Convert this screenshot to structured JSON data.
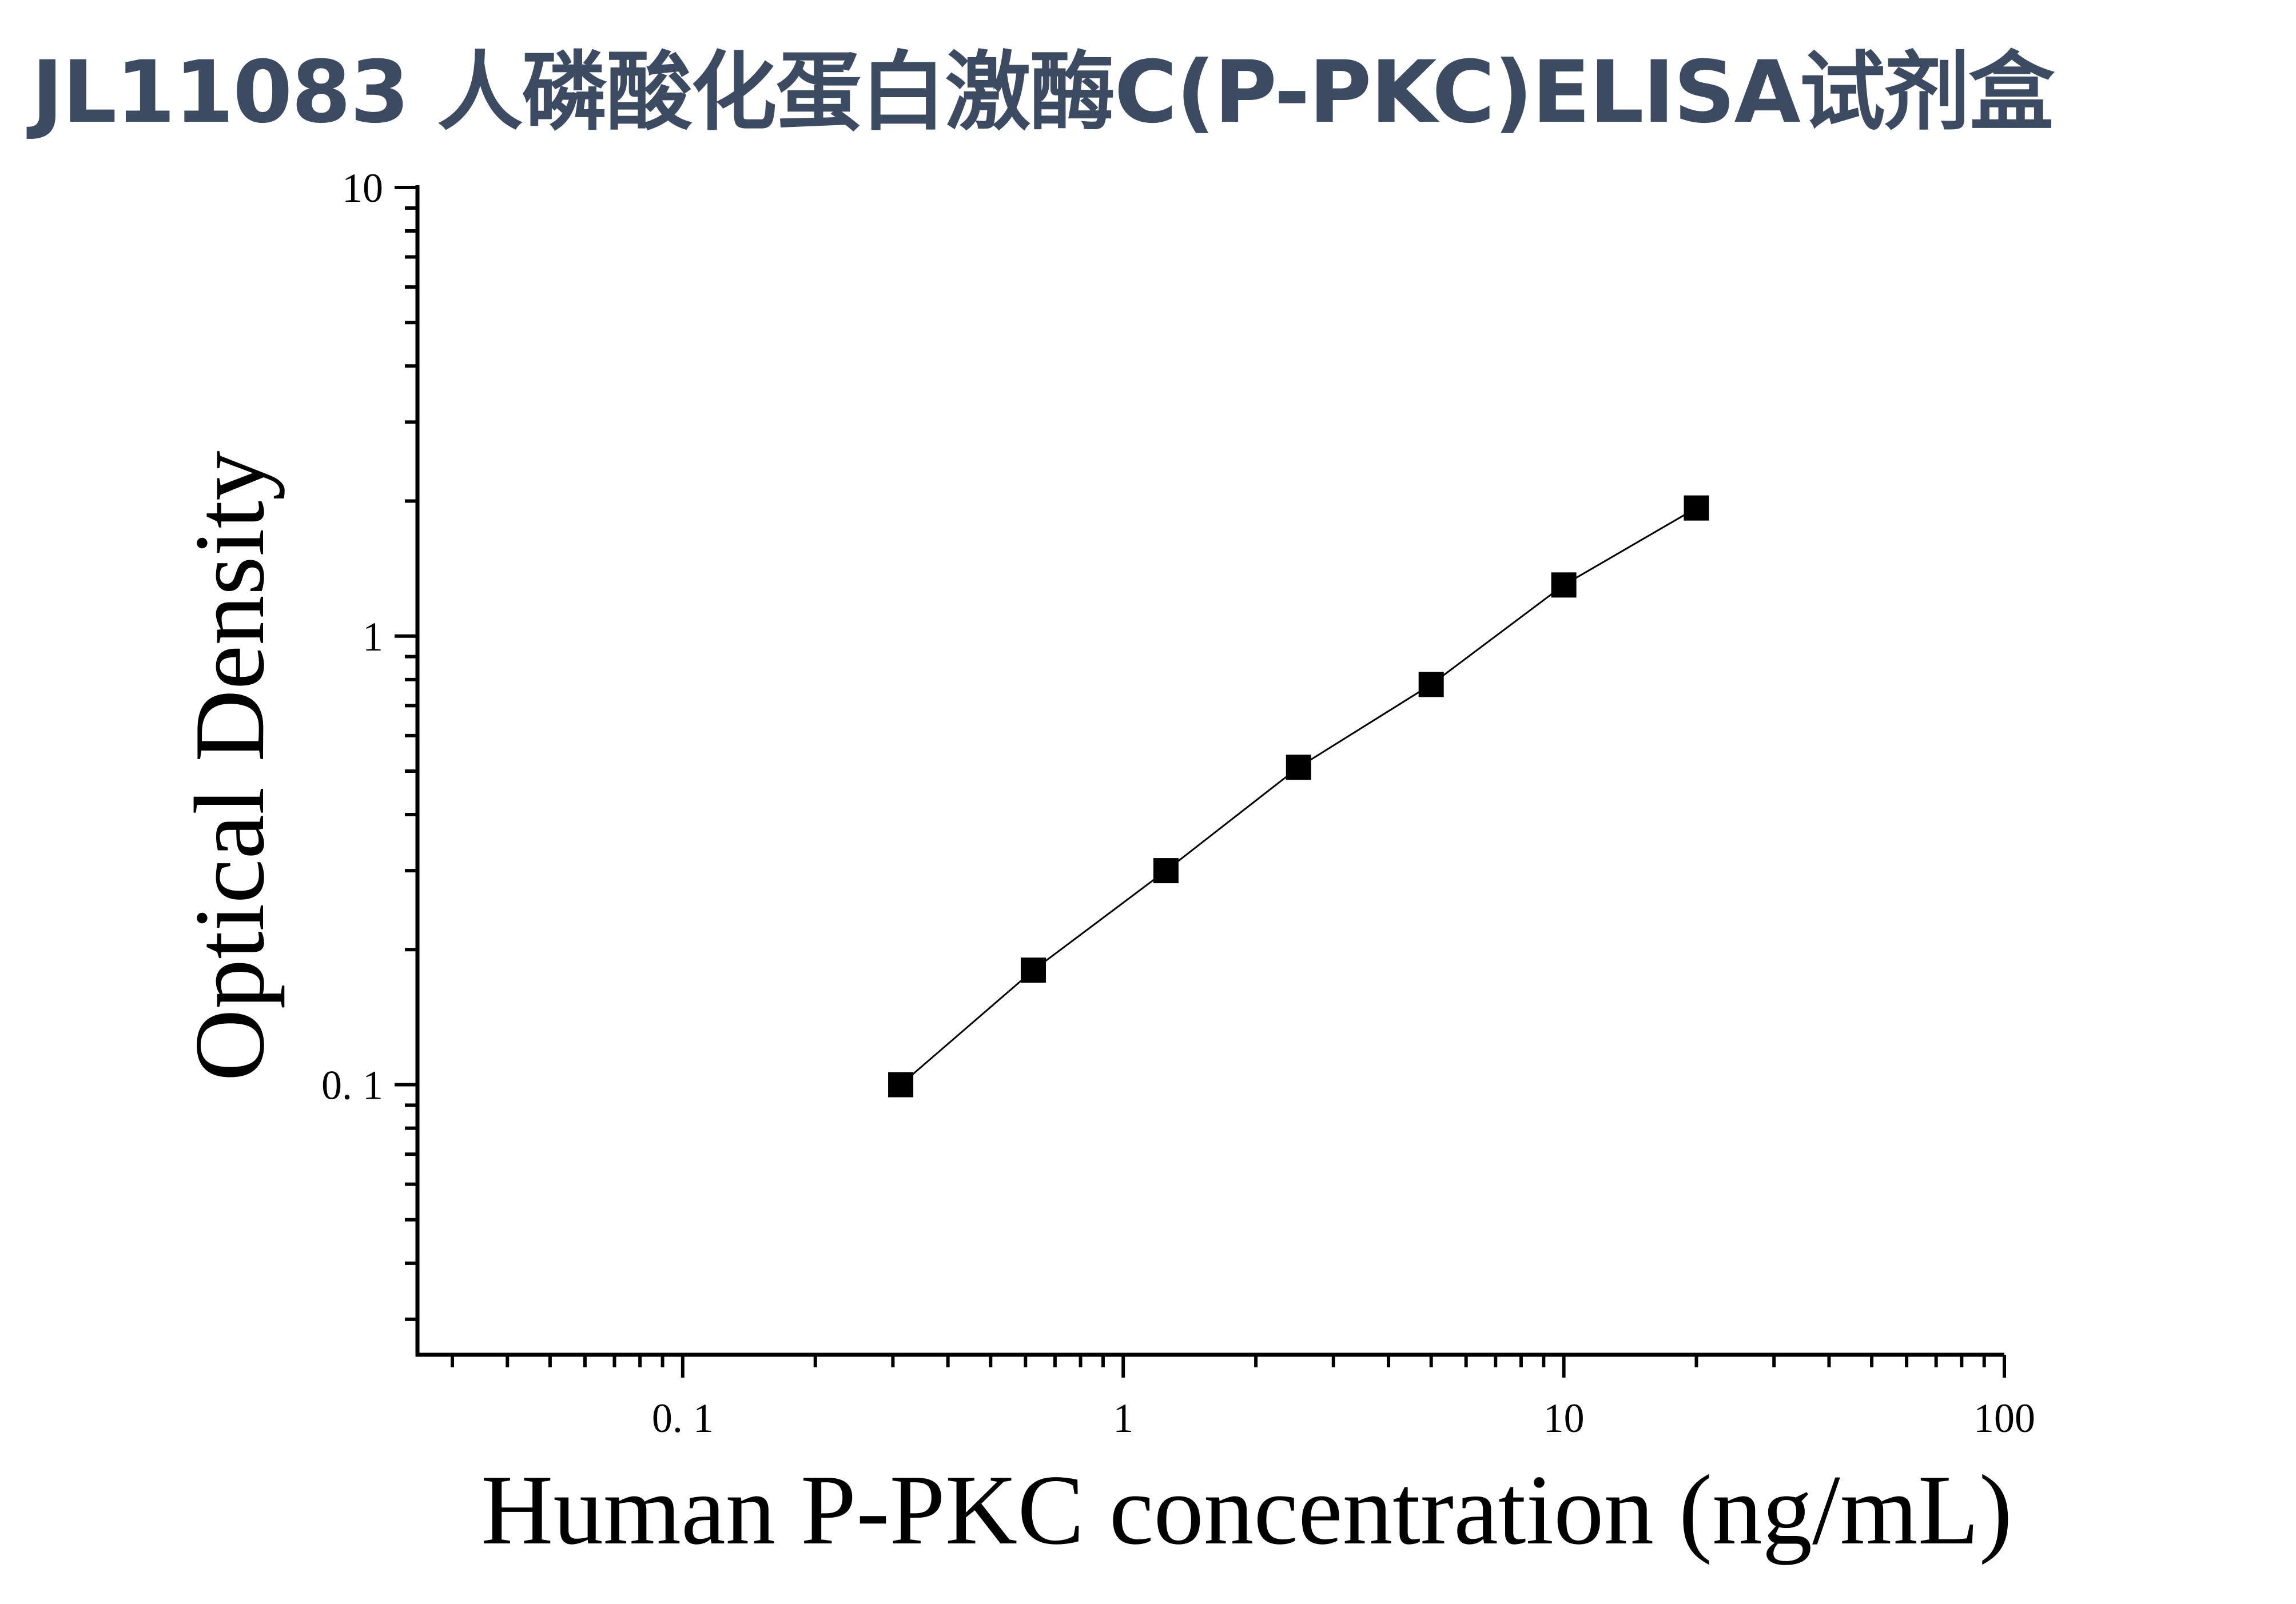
{
  "title": "JL11083 人磷酸化蛋白激酶C(P-PKC)ELISA试剂盒",
  "chart_data": {
    "type": "scatter",
    "xlabel": "Human P-PKC concentration (ng/mL)",
    "ylabel": "Optical Density",
    "xscale": "log",
    "yscale": "log",
    "xlim": [
      0.025,
      100
    ],
    "ylim": [
      0.025,
      10
    ],
    "x_tick_labels": [
      "0. 1",
      "1",
      "10",
      "100"
    ],
    "x_tick_values": [
      0.1,
      1,
      10,
      100
    ],
    "y_tick_labels": [
      "0. 1",
      "1",
      "10"
    ],
    "y_tick_values": [
      0.1,
      1,
      10
    ],
    "series": [
      {
        "x": [
          0.3125,
          0.625,
          1.25,
          2.5,
          5,
          10,
          20
        ],
        "y": [
          0.1,
          0.18,
          0.3,
          0.51,
          0.78,
          1.3,
          1.93
        ],
        "marker": "square",
        "color": "#000000",
        "fit_line": true
      }
    ]
  }
}
